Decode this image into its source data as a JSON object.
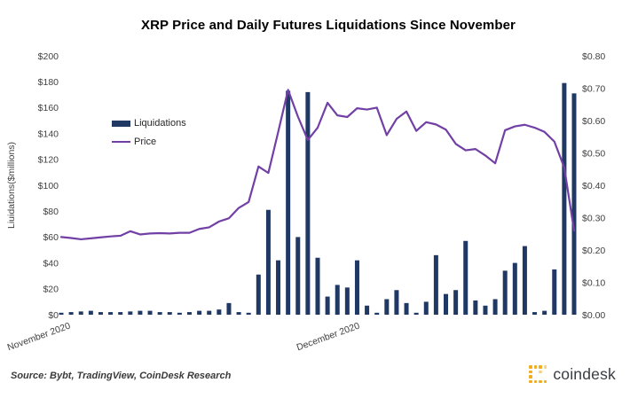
{
  "title": "XRP Price and Daily Futures Liquidations Since November",
  "source_note": "Source: Bybt, TradingView, CoinDesk Research",
  "brand": {
    "wordmark": "coindesk",
    "icon_color": "#f0ad1e"
  },
  "legend": {
    "items": [
      {
        "label": "Liquidations",
        "swatch": "bar"
      },
      {
        "label": "Price",
        "swatch": "line"
      }
    ]
  },
  "colors": {
    "bars": "#1f3864",
    "price_line": "#7240a5",
    "text": "#3f3f3f"
  },
  "chart_data": {
    "type": "bar",
    "subtype": "bar+line dual-axis combo, daily points Nov-Dec 2020",
    "title": "XRP Price and Daily Futures Liquidations Since November",
    "grid": false,
    "legend_position": "upper-left inside plot",
    "x_axis": {
      "labels": [
        "November 2020",
        "December 2020"
      ],
      "label_point_index": [
        0,
        30
      ],
      "n_points": 53
    },
    "left_axis": {
      "title": "Liuidations($millions)",
      "tick_labels": [
        "$200",
        "$180",
        "$160",
        "$140",
        "$120",
        "$100",
        "$80",
        "$60",
        "$40",
        "$20",
        "$0"
      ],
      "range": [
        0,
        200
      ]
    },
    "right_axis": {
      "tick_labels": [
        "$0.80",
        "$0.70",
        "$0.60",
        "$0.50",
        "$0.40",
        "$0.30",
        "$0.20",
        "$0.10",
        "$0.00"
      ],
      "range": [
        0,
        0.8
      ]
    },
    "series": [
      {
        "name": "Liquidations",
        "type": "bar",
        "axis": "left",
        "color": "#1f3864",
        "values": [
          1.5,
          2,
          2.5,
          3,
          2,
          2,
          2,
          2.5,
          3,
          3,
          2,
          2,
          1.5,
          2,
          3,
          3,
          4,
          9,
          2,
          1.5,
          31,
          81,
          42,
          173,
          60,
          172,
          44,
          14,
          23,
          21,
          42,
          7,
          1.5,
          12,
          19,
          9,
          1.5,
          10,
          46,
          16,
          19,
          57,
          11,
          7,
          12,
          34,
          40,
          53,
          2,
          3,
          35,
          179,
          171
        ]
      },
      {
        "name": "Price",
        "type": "line",
        "axis": "right",
        "color": "#7240a5",
        "values": [
          0.24,
          0.237,
          0.233,
          0.236,
          0.239,
          0.242,
          0.244,
          0.258,
          0.248,
          0.251,
          0.252,
          0.251,
          0.253,
          0.253,
          0.265,
          0.27,
          0.288,
          0.298,
          0.33,
          0.348,
          0.458,
          0.438,
          0.565,
          0.695,
          0.612,
          0.54,
          0.578,
          0.655,
          0.616,
          0.611,
          0.638,
          0.634,
          0.64,
          0.555,
          0.605,
          0.628,
          0.568,
          0.595,
          0.588,
          0.572,
          0.528,
          0.508,
          0.512,
          0.492,
          0.468,
          0.57,
          0.582,
          0.587,
          0.578,
          0.565,
          0.535,
          0.455,
          0.26
        ]
      }
    ]
  }
}
